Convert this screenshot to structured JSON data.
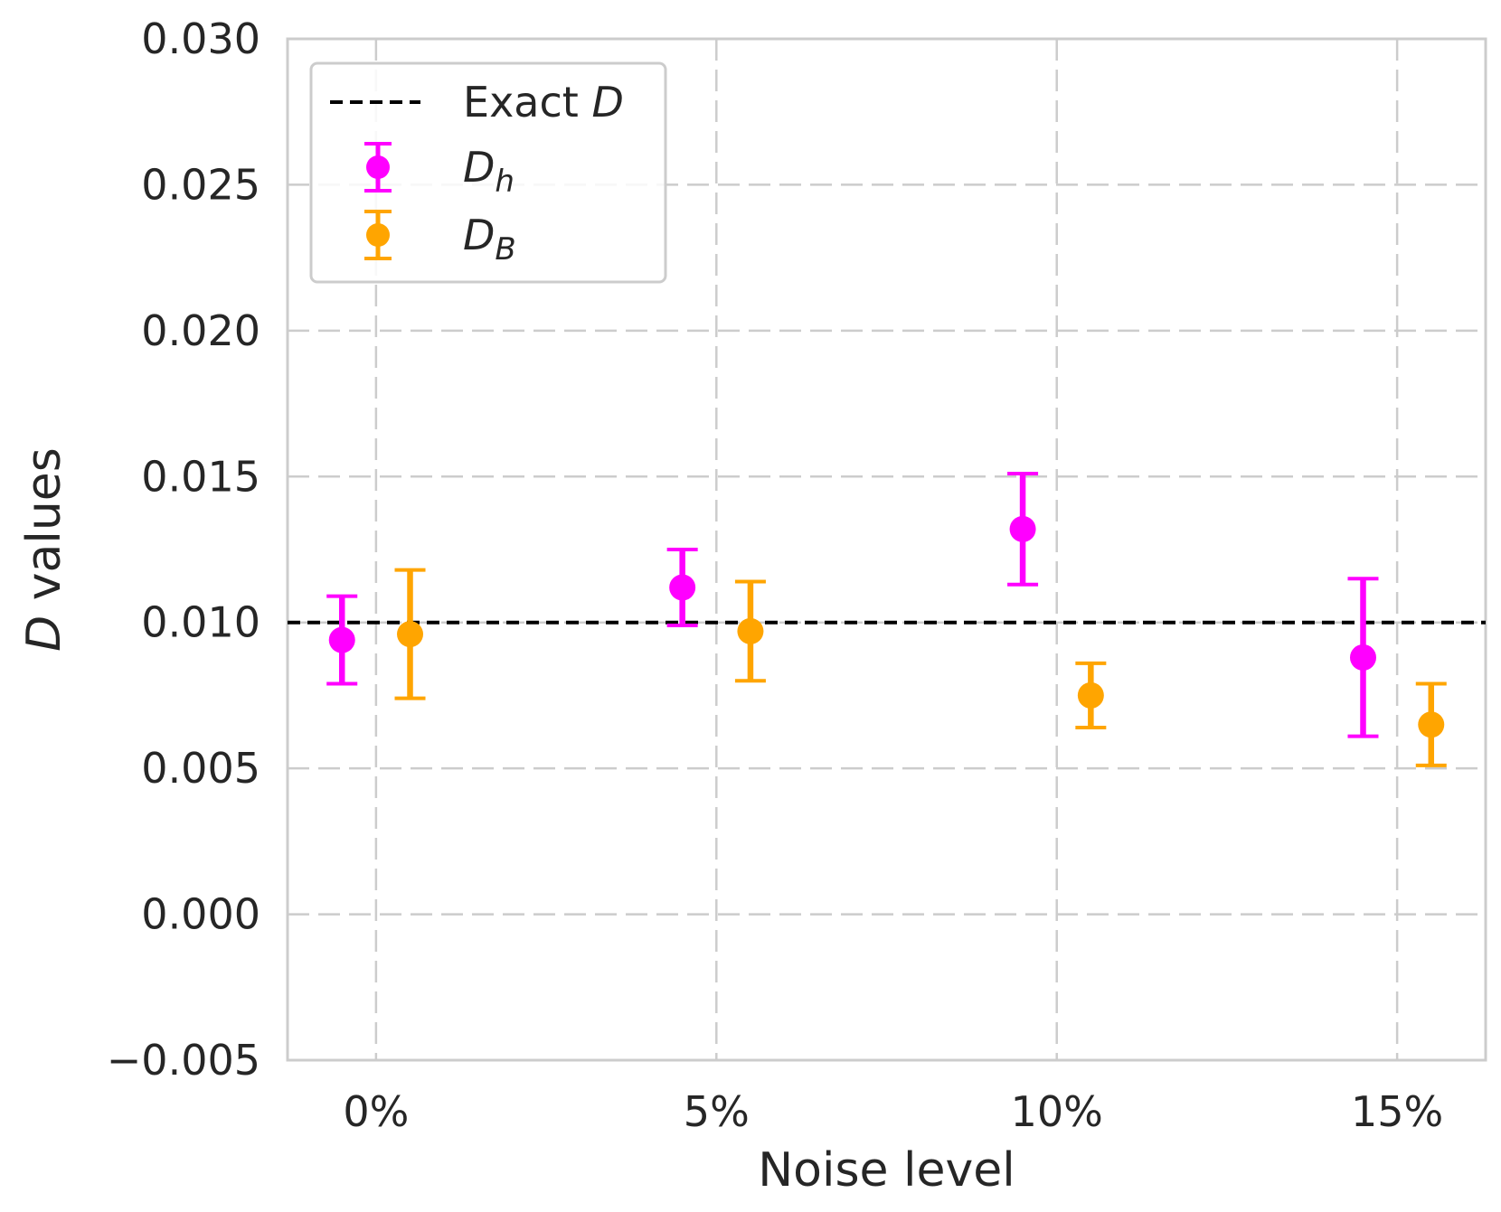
{
  "chart_data": {
    "type": "scatter",
    "title": "",
    "xlabel": "Noise level",
    "ylabel": {
      "italic": "D",
      "rest": " values"
    },
    "categories": [
      "0%",
      "5%",
      "10%",
      "15%"
    ],
    "x": [
      0,
      5,
      10,
      15
    ],
    "xlim": [
      -1.3,
      16.3
    ],
    "ylim": [
      -0.005,
      0.03
    ],
    "yticks": [
      -0.005,
      0.0,
      0.005,
      0.01,
      0.015,
      0.02,
      0.025,
      0.03
    ],
    "ytick_labels": [
      "−0.005",
      "0.000",
      "0.005",
      "0.010",
      "0.015",
      "0.020",
      "0.025",
      "0.030"
    ],
    "grid": true,
    "legend_position": "top-left",
    "reference_line": {
      "name": "Exact D",
      "value": 0.01,
      "color": "#000000",
      "style": "dashed"
    },
    "series": [
      {
        "name": "D_h",
        "color": "#ff00ff",
        "x_offset": -0.5,
        "values": [
          0.0094,
          0.0112,
          0.0132,
          0.0088
        ],
        "lower": [
          0.0079,
          0.0099,
          0.0113,
          0.0061
        ],
        "upper": [
          0.0109,
          0.0125,
          0.0151,
          0.0115
        ]
      },
      {
        "name": "D_B",
        "color": "#ffa500",
        "x_offset": 0.5,
        "values": [
          0.0096,
          0.0097,
          0.0075,
          0.0065
        ],
        "lower": [
          0.0074,
          0.008,
          0.0064,
          0.0051
        ],
        "upper": [
          0.0118,
          0.0114,
          0.0086,
          0.0079
        ]
      }
    ],
    "legend": [
      {
        "kind": "line",
        "label": "Exact ",
        "italic": "D",
        "sub": ""
      },
      {
        "kind": "errorbar",
        "label": "",
        "italic": "D",
        "sub": "h",
        "series": 0
      },
      {
        "kind": "errorbar",
        "label": "",
        "italic": "D",
        "sub": "B",
        "series": 1
      }
    ]
  }
}
